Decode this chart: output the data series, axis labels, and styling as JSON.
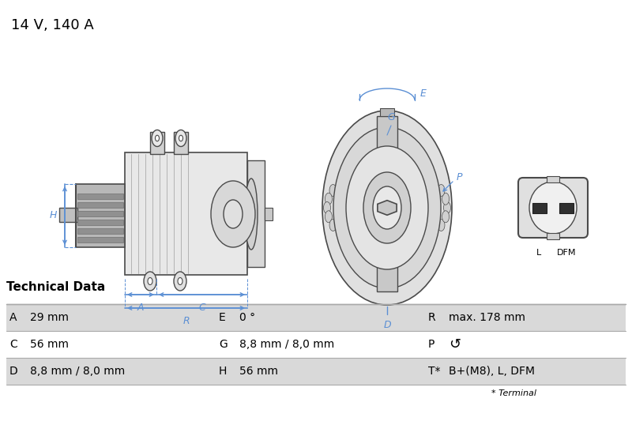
{
  "title": "14 V, 140 A",
  "title_fontsize": 13,
  "bg_color": "#ffffff",
  "table_header": "Technical Data",
  "table_rows": [
    [
      "A",
      "29 mm",
      "E",
      "0 °",
      "R",
      "max. 178 mm"
    ],
    [
      "C",
      "56 mm",
      "G",
      "8,8 mm / 8,0 mm",
      "P",
      "↺"
    ],
    [
      "D",
      "8,8 mm / 8,0 mm",
      "H",
      "56 mm",
      "T*",
      "B+(M8), L, DFM"
    ]
  ],
  "footnote": "* Terminal",
  "row_bg_odd": "#d9d9d9",
  "row_bg_even": "#ffffff",
  "dim_color": "#5b8fd4",
  "line_color": "#4a4a4a",
  "table_line_color": "#aaaaaa",
  "col_splits": [
    0,
    265,
    530,
    800
  ],
  "col_key_offsets": [
    12,
    12,
    12
  ],
  "col_val_offsets": [
    38,
    38,
    38
  ]
}
